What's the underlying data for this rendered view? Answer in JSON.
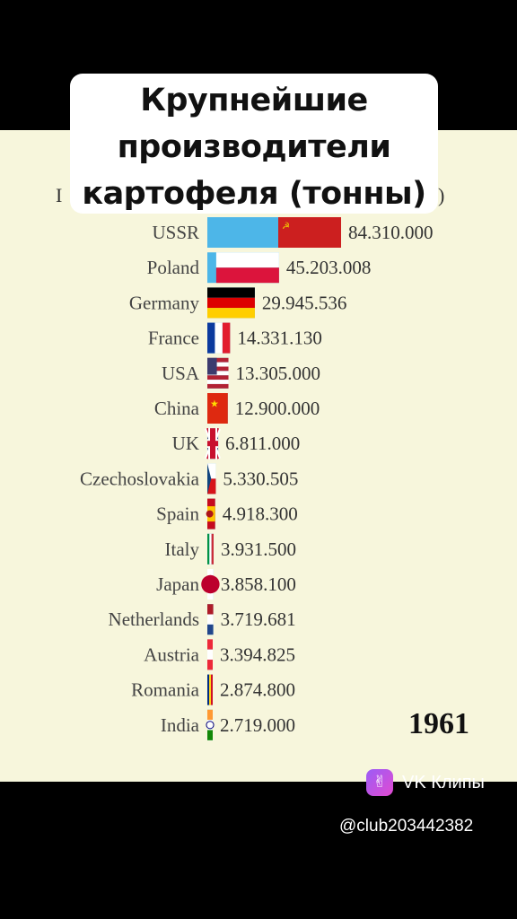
{
  "title": "Крупнейшие производители картофеля (тонны)",
  "year": "1961",
  "watermark": {
    "brand": "VK Клипы",
    "handle": "@club203442382"
  },
  "chart_data": {
    "type": "bar",
    "orientation": "horizontal",
    "unit": "тонны",
    "categories": [
      "USSR",
      "Poland",
      "Germany",
      "France",
      "USA",
      "China",
      "UK",
      "Czechoslovakia",
      "Spain",
      "Italy",
      "Japan",
      "Netherlands",
      "Austria",
      "Romania",
      "India"
    ],
    "values": [
      84310000,
      45203008,
      29945536,
      14331130,
      13305000,
      12900000,
      6811000,
      5330505,
      4918300,
      3931500,
      3858100,
      3719681,
      3394825,
      2874800,
      2719000
    ],
    "value_labels": [
      "84.310.000",
      "45.203.008",
      "29.945.536",
      "14.331.130",
      "13.305.000",
      "12.900.000",
      "6.811.000",
      "5.330.505",
      "4.918.300",
      "3.931.500",
      "3.858.100",
      "3.719.681",
      "3.394.825",
      "2.874.800",
      "2.719.000"
    ],
    "bar_color": "#4db6e8",
    "flags": [
      "ussr",
      "poland",
      "germany",
      "france",
      "usa",
      "china",
      "uk",
      "czechoslovakia",
      "spain",
      "italy",
      "japan",
      "netherlands",
      "austria",
      "romania",
      "india"
    ]
  }
}
